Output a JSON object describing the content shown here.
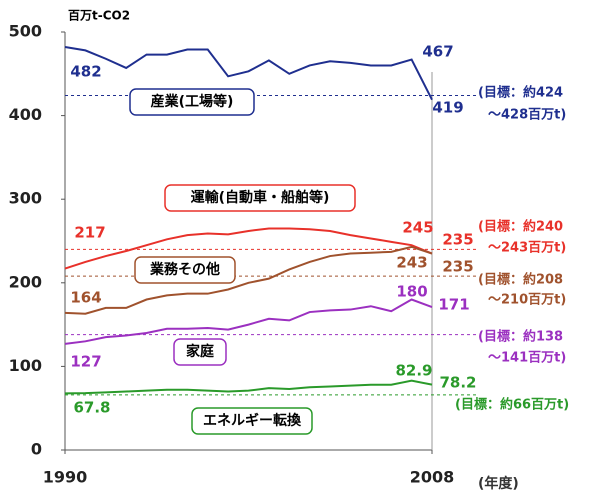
{
  "chart_data": {
    "type": "line",
    "unit_label": "百万t-CO2",
    "x_unit_label": "(年度)",
    "x": [
      1990,
      1991,
      1992,
      1993,
      1994,
      1995,
      1996,
      1997,
      1998,
      1999,
      2000,
      2001,
      2002,
      2003,
      2004,
      2005,
      2006,
      2007,
      2008
    ],
    "xlim": [
      1990,
      2008
    ],
    "xticks": [
      1990,
      2008
    ],
    "ylim": [
      0,
      500
    ],
    "yticks": [
      0,
      100,
      200,
      300,
      400,
      500
    ],
    "series": [
      {
        "name": "産業(工場等)",
        "color": "#1f2f8f",
        "values": [
          482,
          478,
          468,
          457,
          473,
          473,
          479,
          479,
          447,
          453,
          466,
          450,
          460,
          465,
          463,
          460,
          460,
          467,
          419
        ],
        "target": 424,
        "target_note": [
          "(目標：約424",
          "～428百万t)"
        ]
      },
      {
        "name": "運輸(自動車・船舶等)",
        "color": "#e8312a",
        "values": [
          217,
          225,
          232,
          238,
          245,
          252,
          257,
          259,
          258,
          262,
          265,
          265,
          264,
          262,
          257,
          253,
          249,
          245,
          235
        ],
        "target": 240,
        "target_note": [
          "(目標：約240",
          "～243百万t)"
        ]
      },
      {
        "name": "業務その他",
        "color": "#a0522d",
        "values": [
          164,
          163,
          170,
          170,
          180,
          185,
          187,
          187,
          192,
          200,
          205,
          216,
          225,
          232,
          235,
          236,
          237,
          243,
          235
        ],
        "target": 208,
        "target_note": [
          "(目標：約208",
          "～210百万t)"
        ]
      },
      {
        "name": "家庭",
        "color": "#9b30c0",
        "values": [
          127,
          130,
          135,
          137,
          140,
          145,
          145,
          146,
          144,
          150,
          157,
          155,
          165,
          167,
          168,
          172,
          166,
          180,
          171
        ],
        "target": 138,
        "target_note": [
          "(目標：約138",
          "～141百万t)"
        ]
      },
      {
        "name": "エネルギー転換",
        "color": "#2a9a2a",
        "values": [
          67.8,
          68,
          69,
          70,
          71,
          72,
          72,
          71,
          70,
          71,
          74,
          73,
          75,
          76,
          77,
          78,
          78,
          82.9,
          78.2
        ],
        "target": 66,
        "target_note": [
          "(目標：約66百万t)"
        ]
      }
    ]
  }
}
